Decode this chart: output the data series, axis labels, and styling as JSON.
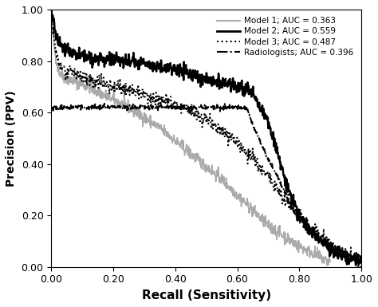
{
  "title": "",
  "xlabel": "Recall (Sensitivity)",
  "ylabel": "Precision (PPV)",
  "xlim": [
    0.0,
    1.0
  ],
  "ylim": [
    0.0,
    1.0
  ],
  "xticks": [
    0.0,
    0.2,
    0.4,
    0.6,
    0.8,
    1.0
  ],
  "yticks": [
    0.0,
    0.2,
    0.4,
    0.6,
    0.8,
    1.0
  ],
  "legend_labels": [
    "Model 1; AUC = 0.363",
    "Model 2; AUC = 0.559",
    "Model 3; AUC = 0.487",
    "Radiologists; AUC = 0.396"
  ],
  "model1_color": "#aaaaaa",
  "model2_color": "#000000",
  "model3_color": "#000000",
  "rad_color": "#000000",
  "background_color": "#ffffff",
  "seed": 42,
  "r1_pts": [
    0.0,
    0.001,
    0.003,
    0.01,
    0.02,
    0.03,
    0.05,
    0.08,
    0.1,
    0.12,
    0.15,
    0.2,
    0.25,
    0.3,
    0.35,
    0.4,
    0.45,
    0.5,
    0.55,
    0.6,
    0.65,
    0.7,
    0.75,
    0.8,
    0.85,
    0.88,
    0.9
  ],
  "p1_pts": [
    1.0,
    1.0,
    0.95,
    0.85,
    0.78,
    0.75,
    0.73,
    0.72,
    0.71,
    0.7,
    0.68,
    0.65,
    0.62,
    0.58,
    0.54,
    0.49,
    0.44,
    0.39,
    0.34,
    0.28,
    0.22,
    0.16,
    0.12,
    0.08,
    0.05,
    0.03,
    0.02
  ],
  "r2_pts": [
    0.0,
    0.001,
    0.003,
    0.01,
    0.02,
    0.03,
    0.05,
    0.08,
    0.1,
    0.15,
    0.2,
    0.25,
    0.3,
    0.35,
    0.4,
    0.45,
    0.5,
    0.55,
    0.6,
    0.65,
    0.67,
    0.7,
    0.75,
    0.8,
    0.85,
    0.9,
    0.95,
    1.0
  ],
  "p2_pts": [
    1.0,
    1.0,
    0.98,
    0.93,
    0.88,
    0.86,
    0.84,
    0.83,
    0.82,
    0.81,
    0.8,
    0.8,
    0.79,
    0.78,
    0.77,
    0.75,
    0.73,
    0.71,
    0.7,
    0.68,
    0.62,
    0.57,
    0.35,
    0.2,
    0.12,
    0.07,
    0.04,
    0.02
  ],
  "r3_pts": [
    0.0,
    0.001,
    0.003,
    0.01,
    0.02,
    0.03,
    0.05,
    0.08,
    0.1,
    0.12,
    0.15,
    0.2,
    0.25,
    0.3,
    0.35,
    0.4,
    0.45,
    0.5,
    0.55,
    0.6,
    0.65,
    0.7,
    0.75,
    0.8,
    0.85,
    0.9,
    0.95,
    1.0
  ],
  "p3_pts": [
    1.0,
    1.0,
    0.96,
    0.88,
    0.81,
    0.78,
    0.76,
    0.75,
    0.74,
    0.73,
    0.72,
    0.7,
    0.69,
    0.67,
    0.65,
    0.63,
    0.6,
    0.57,
    0.53,
    0.48,
    0.42,
    0.35,
    0.27,
    0.2,
    0.14,
    0.09,
    0.05,
    0.02
  ],
  "r4_pts": [
    0.0,
    0.6,
    0.63,
    0.65,
    0.68,
    0.7,
    0.73,
    0.75,
    0.78,
    0.8,
    0.85,
    0.9,
    0.95,
    1.0
  ],
  "p4_pts": [
    0.62,
    0.62,
    0.62,
    0.55,
    0.47,
    0.42,
    0.35,
    0.3,
    0.22,
    0.18,
    0.12,
    0.08,
    0.05,
    0.02
  ]
}
